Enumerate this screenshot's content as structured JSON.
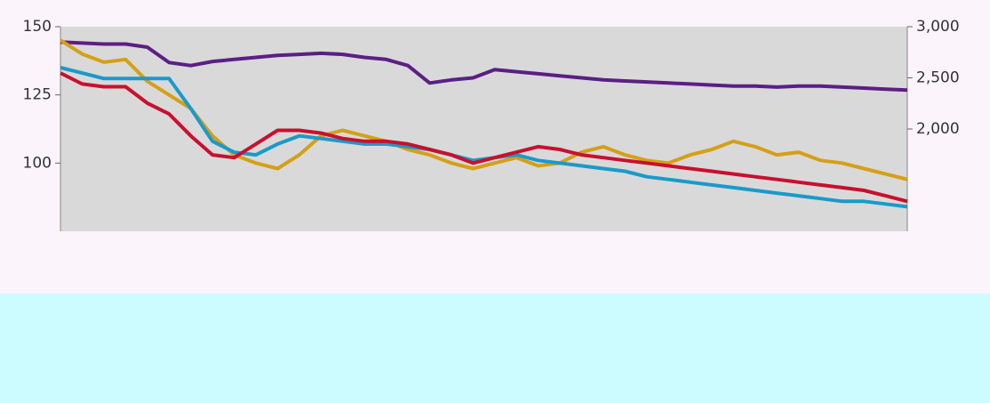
{
  "chart_data": {
    "type": "line",
    "ylim": [
      75,
      150
    ],
    "yticks": [
      100,
      125,
      150
    ],
    "y2lim": [
      1000,
      3000
    ],
    "y2ticks": [
      {
        "value": 2000,
        "label": "2,000"
      },
      {
        "value": 2500,
        "label": "2,500"
      },
      {
        "value": 3000,
        "label": "3,000"
      }
    ],
    "series": [
      {
        "color": "#5b1f84",
        "axis": "y2",
        "values": [
          2850,
          2840,
          2830,
          2830,
          2800,
          2650,
          2620,
          2660,
          2680,
          2700,
          2720,
          2730,
          2740,
          2730,
          2700,
          2680,
          2620,
          2450,
          2480,
          2500,
          2580,
          2560,
          2540,
          2520,
          2500,
          2480,
          2470,
          2460,
          2450,
          2440,
          2430,
          2420,
          2420,
          2410,
          2420,
          2420,
          2410,
          2400,
          2390,
          2380
        ]
      },
      {
        "color": "#d4a017",
        "values": [
          145,
          140,
          137,
          138,
          130,
          125,
          120,
          110,
          103,
          100,
          98,
          103,
          110,
          112,
          110,
          108,
          105,
          103,
          100,
          98,
          100,
          102,
          99,
          100,
          104,
          106,
          103,
          101,
          100,
          103,
          105,
          108,
          106,
          103,
          104,
          101,
          100,
          98,
          96,
          94
        ]
      },
      {
        "color": "#1a9ac9",
        "values": [
          135,
          133,
          131,
          131,
          131,
          131,
          120,
          108,
          104,
          103,
          107,
          110,
          109,
          108,
          107,
          107,
          106,
          105,
          103,
          101,
          102,
          103,
          101,
          100,
          99,
          98,
          97,
          95,
          94,
          93,
          92,
          91,
          90,
          89,
          88,
          87,
          86,
          86,
          85,
          84
        ]
      },
      {
        "color": "#c8102e",
        "values": [
          133,
          129,
          128,
          128,
          122,
          118,
          110,
          103,
          102,
          107,
          112,
          112,
          111,
          109,
          108,
          108,
          107,
          105,
          103,
          100,
          102,
          104,
          106,
          105,
          103,
          102,
          101,
          100,
          99,
          98,
          97,
          96,
          95,
          94,
          93,
          92,
          91,
          90,
          88,
          86
        ]
      }
    ]
  }
}
